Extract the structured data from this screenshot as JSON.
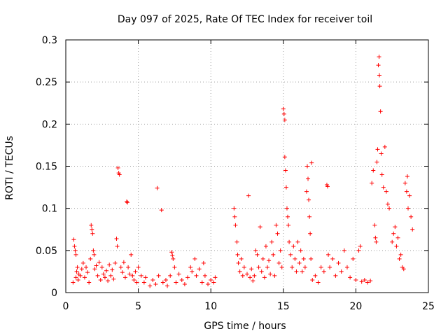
{
  "chart_data": {
    "type": "scatter",
    "title": "Day 097 of 2025, Rate Of TEC Index for receiver toil",
    "xlabel": "GPS time / hours",
    "ylabel": "ROTI / TECUs",
    "xlim": [
      0,
      25
    ],
    "ylim": [
      0,
      0.3
    ],
    "x_ticks": [
      0,
      5,
      10,
      15,
      20,
      25
    ],
    "x_tick_labels": [
      "0",
      "5",
      "10",
      "15",
      "20",
      "25"
    ],
    "y_ticks": [
      0,
      0.05,
      0.1,
      0.15,
      0.2,
      0.25,
      0.3
    ],
    "y_tick_labels": [
      "0",
      "0.05",
      "0.1",
      "0.15",
      "0.2",
      "0.25",
      "0.3"
    ],
    "grid": true,
    "marker": "+",
    "color": "#ff0000",
    "series": [
      {
        "name": "ROTI",
        "points": [
          [
            0.5,
            0.012
          ],
          [
            0.55,
            0.063
          ],
          [
            0.6,
            0.055
          ],
          [
            0.65,
            0.05
          ],
          [
            0.7,
            0.045
          ],
          [
            0.7,
            0.018
          ],
          [
            0.75,
            0.025
          ],
          [
            0.8,
            0.03
          ],
          [
            0.85,
            0.015
          ],
          [
            0.9,
            0.022
          ],
          [
            1.0,
            0.02
          ],
          [
            1.1,
            0.028
          ],
          [
            1.2,
            0.035
          ],
          [
            1.3,
            0.018
          ],
          [
            1.4,
            0.03
          ],
          [
            1.5,
            0.024
          ],
          [
            1.6,
            0.012
          ],
          [
            1.7,
            0.04
          ],
          [
            1.75,
            0.08
          ],
          [
            1.8,
            0.075
          ],
          [
            1.85,
            0.07
          ],
          [
            1.9,
            0.05
          ],
          [
            1.95,
            0.045
          ],
          [
            2.0,
            0.028
          ],
          [
            2.1,
            0.032
          ],
          [
            2.2,
            0.02
          ],
          [
            2.3,
            0.036
          ],
          [
            2.4,
            0.015
          ],
          [
            2.5,
            0.03
          ],
          [
            2.6,
            0.022
          ],
          [
            2.7,
            0.018
          ],
          [
            2.8,
            0.026
          ],
          [
            2.9,
            0.014
          ],
          [
            3.0,
            0.033
          ],
          [
            3.1,
            0.02
          ],
          [
            3.2,
            0.027
          ],
          [
            3.3,
            0.016
          ],
          [
            3.4,
            0.035
          ],
          [
            3.5,
            0.064
          ],
          [
            3.55,
            0.055
          ],
          [
            3.6,
            0.148
          ],
          [
            3.65,
            0.142
          ],
          [
            3.7,
            0.14
          ],
          [
            3.8,
            0.03
          ],
          [
            3.9,
            0.024
          ],
          [
            4.0,
            0.036
          ],
          [
            4.1,
            0.018
          ],
          [
            4.2,
            0.108
          ],
          [
            4.25,
            0.107
          ],
          [
            4.3,
            0.03
          ],
          [
            4.4,
            0.022
          ],
          [
            4.5,
            0.045
          ],
          [
            4.6,
            0.02
          ],
          [
            4.7,
            0.015
          ],
          [
            4.8,
            0.025
          ],
          [
            4.9,
            0.012
          ],
          [
            5.0,
            0.03
          ],
          [
            5.2,
            0.02
          ],
          [
            5.4,
            0.012
          ],
          [
            5.5,
            0.018
          ],
          [
            5.8,
            0.008
          ],
          [
            6.0,
            0.015
          ],
          [
            6.2,
            0.01
          ],
          [
            6.3,
            0.124
          ],
          [
            6.4,
            0.02
          ],
          [
            6.6,
            0.098
          ],
          [
            6.7,
            0.012
          ],
          [
            6.9,
            0.015
          ],
          [
            7.0,
            0.008
          ],
          [
            7.2,
            0.02
          ],
          [
            7.3,
            0.048
          ],
          [
            7.35,
            0.044
          ],
          [
            7.4,
            0.04
          ],
          [
            7.5,
            0.03
          ],
          [
            7.6,
            0.012
          ],
          [
            7.8,
            0.022
          ],
          [
            8.0,
            0.015
          ],
          [
            8.2,
            0.01
          ],
          [
            8.4,
            0.018
          ],
          [
            8.6,
            0.03
          ],
          [
            8.7,
            0.025
          ],
          [
            8.9,
            0.04
          ],
          [
            9.0,
            0.02
          ],
          [
            9.2,
            0.028
          ],
          [
            9.4,
            0.012
          ],
          [
            9.5,
            0.035
          ],
          [
            9.6,
            0.02
          ],
          [
            9.8,
            0.01
          ],
          [
            10.0,
            0.015
          ],
          [
            10.2,
            0.012
          ],
          [
            10.3,
            0.018
          ],
          [
            11.6,
            0.1
          ],
          [
            11.65,
            0.09
          ],
          [
            11.7,
            0.08
          ],
          [
            11.8,
            0.06
          ],
          [
            11.85,
            0.045
          ],
          [
            11.9,
            0.035
          ],
          [
            12.0,
            0.025
          ],
          [
            12.1,
            0.04
          ],
          [
            12.2,
            0.02
          ],
          [
            12.3,
            0.03
          ],
          [
            12.5,
            0.022
          ],
          [
            12.6,
            0.115
          ],
          [
            12.7,
            0.018
          ],
          [
            12.8,
            0.028
          ],
          [
            12.9,
            0.014
          ],
          [
            13.0,
            0.02
          ],
          [
            13.1,
            0.05
          ],
          [
            13.2,
            0.045
          ],
          [
            13.3,
            0.03
          ],
          [
            13.4,
            0.078
          ],
          [
            13.5,
            0.025
          ],
          [
            13.6,
            0.04
          ],
          [
            13.7,
            0.018
          ],
          [
            13.8,
            0.055
          ],
          [
            13.9,
            0.03
          ],
          [
            14.0,
            0.038
          ],
          [
            14.1,
            0.022
          ],
          [
            14.2,
            0.06
          ],
          [
            14.3,
            0.045
          ],
          [
            14.4,
            0.02
          ],
          [
            14.5,
            0.08
          ],
          [
            14.6,
            0.07
          ],
          [
            14.7,
            0.035
          ],
          [
            14.8,
            0.05
          ],
          [
            14.9,
            0.03
          ],
          [
            15.0,
            0.218
          ],
          [
            15.05,
            0.212
          ],
          [
            15.1,
            0.205
          ],
          [
            15.1,
            0.161
          ],
          [
            15.15,
            0.145
          ],
          [
            15.2,
            0.125
          ],
          [
            15.25,
            0.1
          ],
          [
            15.3,
            0.09
          ],
          [
            15.35,
            0.08
          ],
          [
            15.4,
            0.06
          ],
          [
            15.5,
            0.045
          ],
          [
            15.6,
            0.03
          ],
          [
            15.7,
            0.055
          ],
          [
            15.8,
            0.04
          ],
          [
            15.9,
            0.025
          ],
          [
            16.0,
            0.06
          ],
          [
            16.1,
            0.035
          ],
          [
            16.2,
            0.05
          ],
          [
            16.3,
            0.025
          ],
          [
            16.4,
            0.04
          ],
          [
            16.5,
            0.03
          ],
          [
            16.6,
            0.12
          ],
          [
            16.65,
            0.15
          ],
          [
            16.7,
            0.135
          ],
          [
            16.75,
            0.11
          ],
          [
            16.8,
            0.09
          ],
          [
            16.85,
            0.07
          ],
          [
            16.9,
            0.04
          ],
          [
            16.95,
            0.154
          ],
          [
            17.0,
            0.015
          ],
          [
            17.2,
            0.02
          ],
          [
            17.4,
            0.012
          ],
          [
            17.6,
            0.03
          ],
          [
            17.8,
            0.025
          ],
          [
            18.0,
            0.128
          ],
          [
            18.05,
            0.126
          ],
          [
            18.1,
            0.045
          ],
          [
            18.2,
            0.03
          ],
          [
            18.4,
            0.04
          ],
          [
            18.6,
            0.02
          ],
          [
            18.8,
            0.035
          ],
          [
            19.0,
            0.025
          ],
          [
            19.2,
            0.05
          ],
          [
            19.4,
            0.03
          ],
          [
            19.6,
            0.018
          ],
          [
            19.8,
            0.04
          ],
          [
            20.0,
            0.015
          ],
          [
            20.2,
            0.05
          ],
          [
            20.3,
            0.055
          ],
          [
            20.4,
            0.013
          ],
          [
            20.6,
            0.015
          ],
          [
            20.8,
            0.012
          ],
          [
            21.0,
            0.014
          ],
          [
            21.1,
            0.13
          ],
          [
            21.2,
            0.145
          ],
          [
            21.3,
            0.08
          ],
          [
            21.35,
            0.065
          ],
          [
            21.4,
            0.06
          ],
          [
            21.45,
            0.155
          ],
          [
            21.5,
            0.17
          ],
          [
            21.55,
            0.27
          ],
          [
            21.6,
            0.28
          ],
          [
            21.62,
            0.258
          ],
          [
            21.65,
            0.245
          ],
          [
            21.7,
            0.215
          ],
          [
            21.75,
            0.165
          ],
          [
            21.8,
            0.14
          ],
          [
            21.9,
            0.125
          ],
          [
            22.0,
            0.173
          ],
          [
            22.1,
            0.12
          ],
          [
            22.2,
            0.105
          ],
          [
            22.3,
            0.1
          ],
          [
            22.5,
            0.06
          ],
          [
            22.6,
            0.07
          ],
          [
            22.7,
            0.078
          ],
          [
            22.8,
            0.055
          ],
          [
            22.9,
            0.065
          ],
          [
            23.0,
            0.04
          ],
          [
            23.1,
            0.045
          ],
          [
            23.2,
            0.03
          ],
          [
            23.3,
            0.028
          ],
          [
            23.4,
            0.13
          ],
          [
            23.5,
            0.12
          ],
          [
            23.55,
            0.138
          ],
          [
            23.6,
            0.1
          ],
          [
            23.7,
            0.115
          ],
          [
            23.8,
            0.09
          ],
          [
            23.9,
            0.075
          ]
        ]
      }
    ]
  }
}
